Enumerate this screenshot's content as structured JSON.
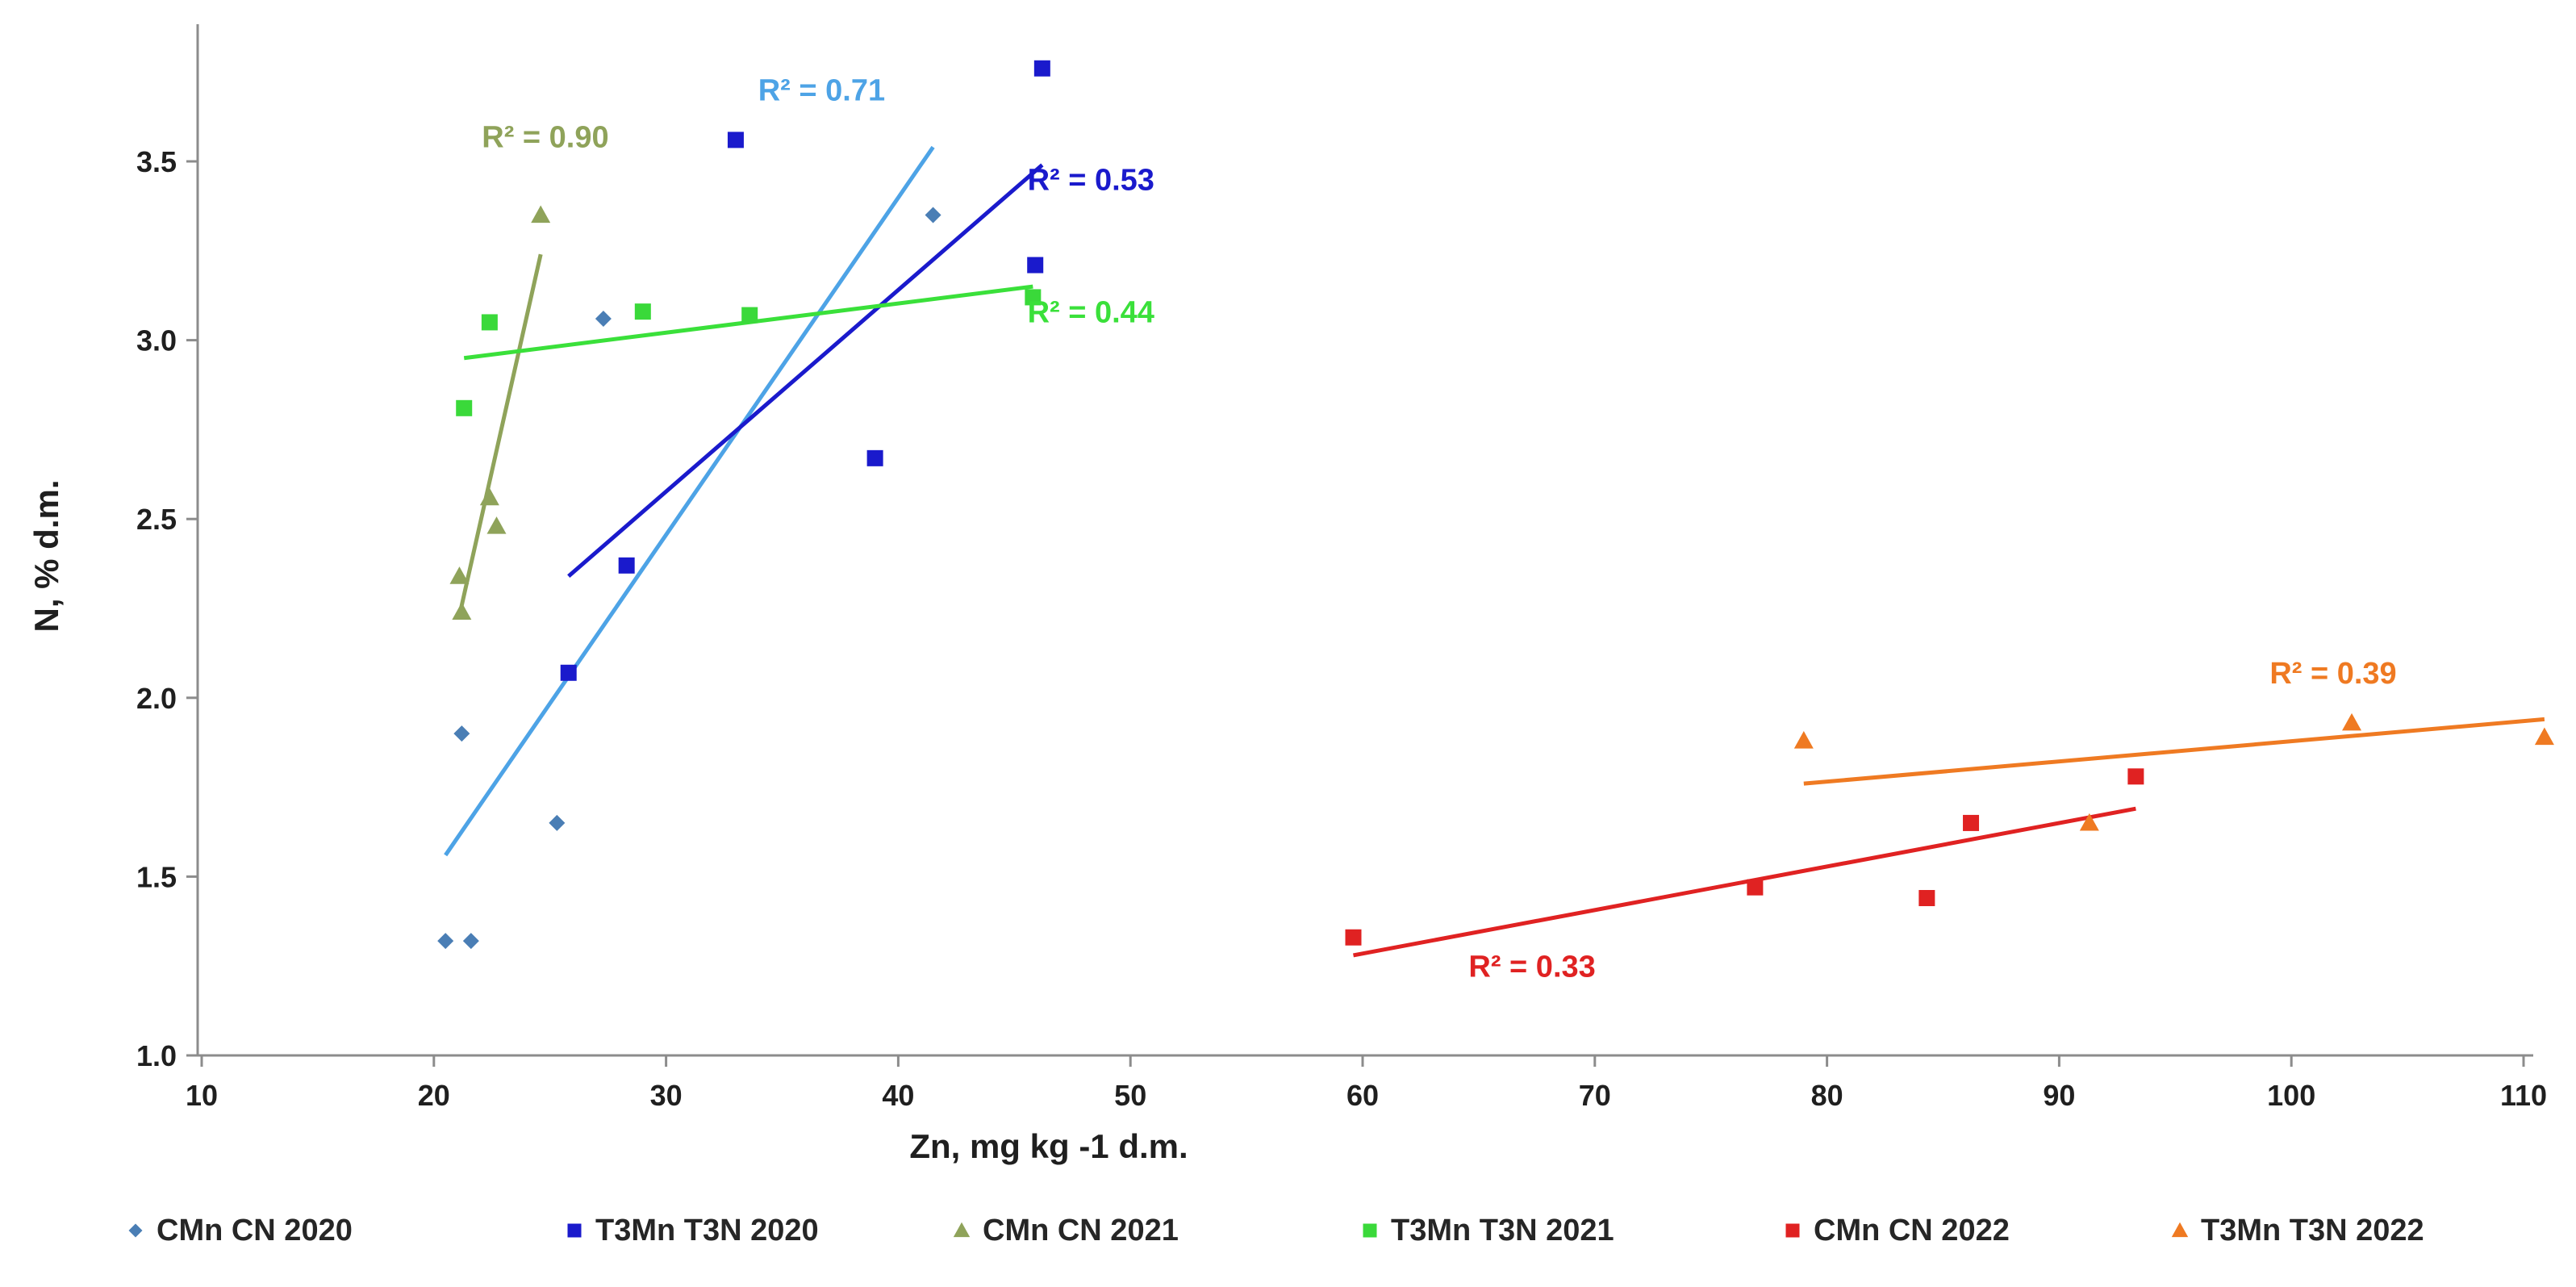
{
  "chart_data": {
    "type": "scatter",
    "xlabel": "Zn, mg kg -1 d.m.",
    "ylabel": "N, % d.m.",
    "xlim": [
      10,
      111
    ],
    "ylim": [
      1.0,
      3.8
    ],
    "x_ticks": [
      10,
      20,
      30,
      40,
      50,
      60,
      70,
      80,
      90,
      100,
      110
    ],
    "y_ticks": [
      1.0,
      1.5,
      2.0,
      2.5,
      3.0,
      3.5
    ],
    "y_tick_labels": [
      "1.0",
      "1.5",
      "2.0",
      "2.5",
      "3.0",
      "3.5"
    ],
    "grid": false,
    "legend_position": "bottom",
    "series": [
      {
        "name": "CMn CN 2020",
        "marker": "diamond",
        "color": "#4a7eb5",
        "points": [
          [
            20.5,
            1.32
          ],
          [
            21.6,
            1.32
          ],
          [
            21.2,
            1.9
          ],
          [
            25.3,
            1.65
          ],
          [
            27.3,
            3.06
          ],
          [
            41.5,
            3.35
          ]
        ]
      },
      {
        "name": "T3Mn  T3N 2020",
        "marker": "square",
        "color": "#1a1acc",
        "points": [
          [
            25.8,
            2.07
          ],
          [
            28.3,
            2.37
          ],
          [
            33.0,
            3.56
          ],
          [
            39.0,
            2.67
          ],
          [
            45.9,
            3.21
          ],
          [
            46.2,
            3.76
          ]
        ]
      },
      {
        "name": "CMn CN 2021",
        "marker": "triangle",
        "color": "#8fa35a",
        "points": [
          [
            21.1,
            2.34
          ],
          [
            21.2,
            2.24
          ],
          [
            22.4,
            2.56
          ],
          [
            22.7,
            2.48
          ],
          [
            24.6,
            3.35
          ]
        ]
      },
      {
        "name": "T3Mn  T3N 2021",
        "marker": "square",
        "color": "#3ad93a",
        "points": [
          [
            21.3,
            2.81
          ],
          [
            22.4,
            3.05
          ],
          [
            29.0,
            3.08
          ],
          [
            33.6,
            3.07
          ],
          [
            45.8,
            3.12
          ]
        ]
      },
      {
        "name": "CMn CN 2022",
        "marker": "square",
        "color": "#e02222",
        "points": [
          [
            59.6,
            1.33
          ],
          [
            76.9,
            1.47
          ],
          [
            84.3,
            1.44
          ],
          [
            86.2,
            1.65
          ],
          [
            93.3,
            1.78
          ]
        ]
      },
      {
        "name": "T3Mn  T3N 2022",
        "marker": "triangle",
        "color": "#ef7a22",
        "points": [
          [
            79.0,
            1.88
          ],
          [
            91.3,
            1.65
          ],
          [
            102.6,
            1.93
          ],
          [
            110.9,
            1.89
          ]
        ]
      }
    ],
    "trendlines": [
      {
        "series": "CMn CN 2020",
        "color": "#4da3e6",
        "x": [
          20.5,
          41.5
        ],
        "y": [
          1.56,
          3.54
        ]
      },
      {
        "series": "T3Mn  T3N 2020",
        "color": "#1a1acc",
        "x": [
          25.8,
          46.2
        ],
        "y": [
          2.34,
          3.49
        ]
      },
      {
        "series": "CMn CN 2021",
        "color": "#8fa35a",
        "x": [
          21.1,
          24.6
        ],
        "y": [
          2.23,
          3.24
        ]
      },
      {
        "series": "T3Mn  T3N 2021",
        "color": "#3ae03a",
        "x": [
          21.3,
          45.8
        ],
        "y": [
          2.95,
          3.15
        ]
      },
      {
        "series": "CMn CN 2022",
        "color": "#e02222",
        "x": [
          59.6,
          93.3
        ],
        "y": [
          1.28,
          1.69
        ]
      },
      {
        "series": "T3Mn  T3N 2022",
        "color": "#ef7a22",
        "x": [
          79.0,
          110.9
        ],
        "y": [
          1.76,
          1.94
        ]
      }
    ],
    "annotations": [
      {
        "text": "R² = 0.90",
        "color": "#8fa35a",
        "x": 24.8,
        "y": 3.54
      },
      {
        "text": "R² = 0.71",
        "color": "#4da3e6",
        "x": 36.7,
        "y": 3.67
      },
      {
        "text": "R² = 0.53",
        "color": "#1a1acc",
        "x": 48.3,
        "y": 3.42
      },
      {
        "text": "R² = 0.44",
        "color": "#3ae03a",
        "x": 48.3,
        "y": 3.05
      },
      {
        "text": "R² = 0.33",
        "color": "#e02222",
        "x": 67.3,
        "y": 1.22
      },
      {
        "text": "R² = 0.39",
        "color": "#ef7a22",
        "x": 101.8,
        "y": 2.04
      }
    ]
  }
}
